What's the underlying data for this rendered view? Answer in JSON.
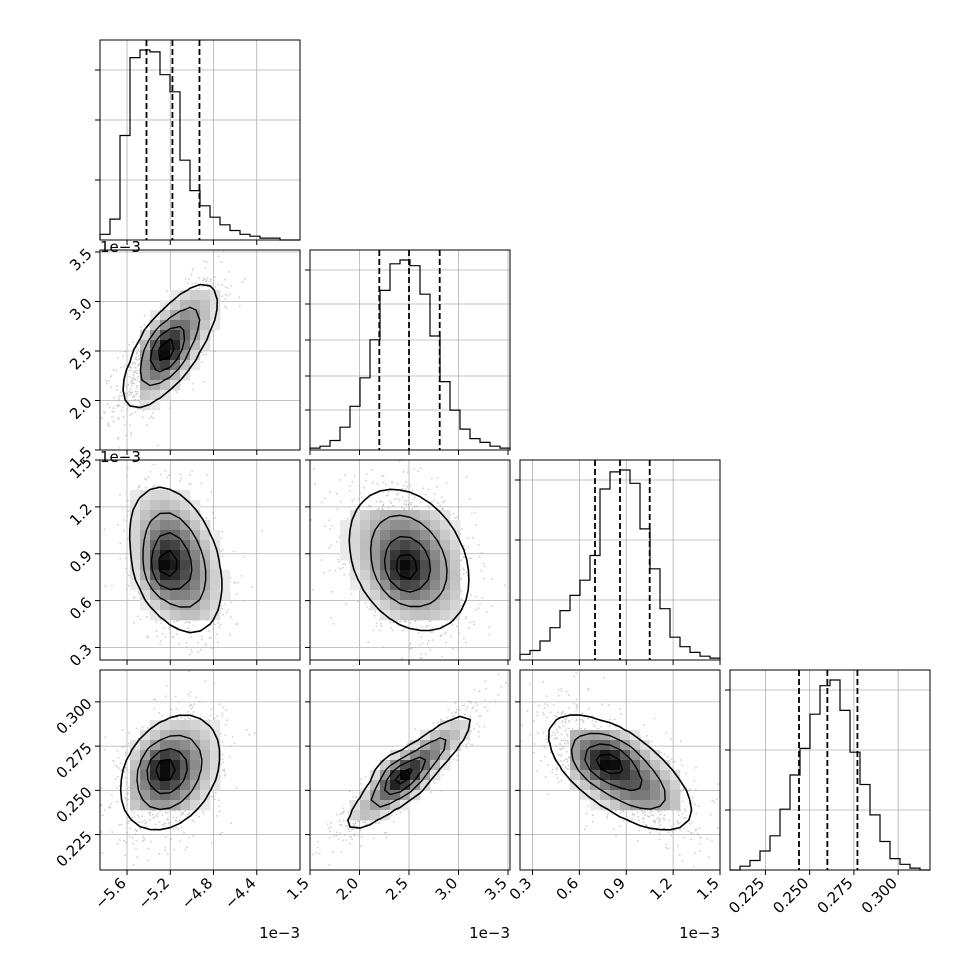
{
  "chart_data": {
    "type": "corner",
    "grid": true,
    "parameters": [
      {
        "range": [
          -5.85,
          -4.0
        ],
        "ticks": [
          -5.6,
          -5.2,
          -4.8,
          -4.4
        ],
        "tick_labels": [
          "−5.6",
          "−5.2",
          "−4.8",
          "−4.4"
        ],
        "offset_label": "1e−3",
        "quantiles": [
          -5.42,
          -5.18,
          -4.93
        ],
        "hist": {
          "values": [
            0.03,
            0.11,
            0.55,
            0.96,
            1.0,
            0.99,
            0.87,
            0.78,
            0.42,
            0.26,
            0.18,
            0.12,
            0.08,
            0.05,
            0.03,
            0.02,
            0.01,
            0.01,
            0.0,
            0.0
          ],
          "yticks": [
            0.3,
            0.6,
            0.85
          ]
        }
      },
      {
        "range": [
          1.5,
          3.52
        ],
        "ticks": [
          1.5,
          2.0,
          2.5,
          3.0,
          3.5
        ],
        "tick_labels": [
          "1.5",
          "2.0",
          "2.5",
          "3.0",
          "3.5"
        ],
        "offset_label": "1e−3",
        "quantiles": [
          2.2,
          2.5,
          2.81
        ],
        "hist": {
          "values": [
            0.01,
            0.02,
            0.05,
            0.12,
            0.23,
            0.38,
            0.58,
            0.84,
            0.98,
            1.0,
            0.97,
            0.82,
            0.6,
            0.36,
            0.21,
            0.11,
            0.06,
            0.04,
            0.02,
            0.01
          ],
          "yticks": [
            0.2,
            0.37,
            0.55,
            0.73,
            0.9
          ]
        }
      },
      {
        "range": [
          0.22,
          1.5
        ],
        "ticks": [
          0.3,
          0.6,
          0.9,
          1.2,
          1.5
        ],
        "tick_labels": [
          "0.3",
          "0.6",
          "0.9",
          "1.2",
          "1.5"
        ],
        "offset_label": "1e−3",
        "quantiles": [
          0.7,
          0.86,
          1.05
        ],
        "hist": {
          "values": [
            0.03,
            0.05,
            0.1,
            0.17,
            0.26,
            0.34,
            0.42,
            0.55,
            0.9,
            0.99,
            1.0,
            0.93,
            0.69,
            0.48,
            0.27,
            0.12,
            0.07,
            0.04,
            0.02,
            0.01
          ],
          "yticks": [
            0.3,
            0.6,
            0.9
          ]
        }
      },
      {
        "range": [
          0.205,
          0.318
        ],
        "ticks": [
          0.225,
          0.25,
          0.275,
          0.3
        ],
        "tick_labels": [
          "0.225",
          "0.250",
          "0.275",
          "0.300"
        ],
        "offset_label": "",
        "quantiles": [
          0.244,
          0.26,
          0.277
        ],
        "hist": {
          "values": [
            0.0,
            0.02,
            0.05,
            0.1,
            0.18,
            0.32,
            0.5,
            0.64,
            0.82,
            0.97,
            1.0,
            0.84,
            0.62,
            0.45,
            0.29,
            0.15,
            0.06,
            0.03,
            0.01,
            0.0
          ],
          "yticks": [
            0.3,
            0.6,
            0.9
          ]
        }
      }
    ],
    "pairs": [
      {
        "x": 0,
        "y": 1,
        "mean": [
          -5.2,
          2.55
        ],
        "sd": [
          0.23,
          0.33
        ],
        "rho": 0.72,
        "peak": [
          -5.25,
          2.5
        ],
        "extent": [
          [
            -5.48,
            -4.63
          ],
          [
            1.83,
            3.08
          ]
        ]
      },
      {
        "x": 0,
        "y": 2,
        "mean": [
          -5.15,
          0.86
        ],
        "sd": [
          0.22,
          0.24
        ],
        "rho": -0.35,
        "peak": [
          -5.28,
          0.8
        ],
        "extent": [
          [
            -5.55,
            -4.66
          ],
          [
            0.47,
            1.29
          ]
        ]
      },
      {
        "x": 1,
        "y": 2,
        "mean": [
          2.5,
          0.86
        ],
        "sd": [
          0.32,
          0.24
        ],
        "rho": -0.28,
        "peak": [
          2.45,
          0.79
        ],
        "extent": [
          [
            1.85,
            2.98
          ],
          [
            0.48,
            1.18
          ]
        ]
      },
      {
        "x": 0,
        "y": 3,
        "mean": [
          -5.2,
          0.26
        ],
        "sd": [
          0.24,
          0.017
        ],
        "rho": 0.3,
        "peak": [
          -5.28,
          0.263
        ],
        "extent": [
          [
            -5.56,
            -4.77
          ],
          [
            0.237,
            0.29
          ]
        ]
      },
      {
        "x": 1,
        "y": 3,
        "mean": [
          2.5,
          0.26
        ],
        "sd": [
          0.33,
          0.017
        ],
        "rho": 0.9,
        "peak": [
          2.4,
          0.258
        ],
        "extent": [
          [
            1.78,
            3.12
          ],
          [
            0.235,
            0.29
          ]
        ]
      },
      {
        "x": 2,
        "y": 3,
        "mean": [
          0.86,
          0.26
        ],
        "sd": [
          0.24,
          0.017
        ],
        "rho": -0.65,
        "peak": [
          0.77,
          0.267
        ],
        "extent": [
          [
            0.57,
            1.27
          ],
          [
            0.24,
            0.282
          ]
        ]
      }
    ],
    "colors": {
      "line": "#000000",
      "grid": "#b0b0b0",
      "points": "#a8a8a8"
    }
  }
}
